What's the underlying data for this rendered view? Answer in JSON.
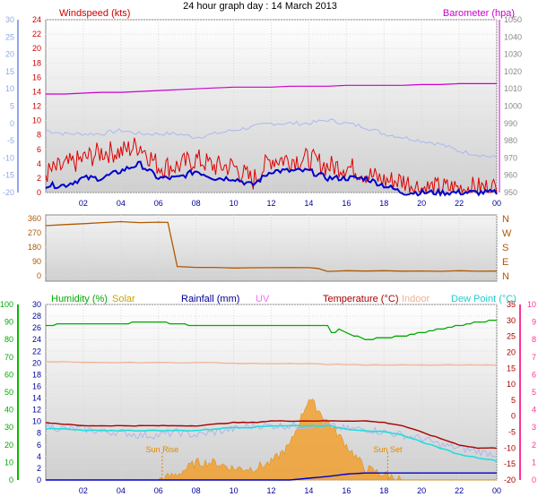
{
  "title": "24 hour graph day : 14 March 2013",
  "colors": {
    "wind": "#dd0000",
    "gust_avg": "#0000cc",
    "baro": "#cc00cc",
    "temp_axis": "#8fa8e8",
    "wind_dir": "#b05800",
    "humidity": "#00aa00",
    "solar": "#f0a030",
    "rain": "#0000cc",
    "uv": "#ff66ff",
    "temperature": "#aa0000",
    "indoor": "#f0b090",
    "dewpoint": "#22dddd",
    "hum_axis": "#00bb00",
    "uv_axis": "#ff3399"
  },
  "panels": {
    "wind": {
      "label_left": "Windspeed (kts)",
      "label_right": "Barometer (hpa)",
      "left_temp_ticks": [
        "30",
        "25",
        "20",
        "15",
        "10",
        "5",
        "0",
        "-5",
        "-10",
        "-15",
        "-20"
      ],
      "left_wind_ticks": [
        "24",
        "22",
        "20",
        "18",
        "16",
        "14",
        "12",
        "10",
        "8",
        "6",
        "4",
        "2",
        "0"
      ],
      "right_baro_ticks": [
        "1050",
        "1040",
        "1030",
        "1020",
        "1010",
        "1000",
        "990",
        "980",
        "970",
        "960",
        "950"
      ]
    },
    "direction": {
      "left_ticks": [
        "360",
        "270",
        "180",
        "90",
        "0"
      ],
      "right_ticks": [
        "N",
        "W",
        "S",
        "E",
        "N"
      ]
    },
    "multi": {
      "labels": {
        "humidity": "Humidity  (%)",
        "solar": "Solar",
        "rainfall": "Rainfall (mm)",
        "uv": "UV",
        "temperature": "Temperature (°C)",
        "indoor": "Indoor",
        "dewpoint": "Dew Point (°C)"
      },
      "left_hum_ticks": [
        "100",
        "90",
        "80",
        "70",
        "60",
        "50",
        "40",
        "30",
        "20",
        "10",
        "0"
      ],
      "left_rain_ticks": [
        "30",
        "28",
        "26",
        "24",
        "22",
        "20",
        "18",
        "16",
        "14",
        "12",
        "10",
        "8",
        "6",
        "4",
        "2",
        "0"
      ],
      "right_temp_ticks": [
        "35",
        "30",
        "25",
        "20",
        "15",
        "10",
        "5",
        "0",
        "-5",
        "-10",
        "-15",
        "-20"
      ],
      "right_uv_ticks": [
        "10",
        "9",
        "8",
        "7",
        "6",
        "5",
        "4",
        "3",
        "2",
        "1",
        "0"
      ],
      "sunrise": "Sun Rise",
      "sunset": "Sun Set"
    }
  },
  "x_ticks": [
    "02",
    "04",
    "06",
    "08",
    "10",
    "12",
    "14",
    "16",
    "18",
    "20",
    "22",
    "00"
  ],
  "chart_data": [
    {
      "type": "line",
      "title": "24 hour graph day : 14 March 2013",
      "xlabel": "",
      "ylabel": "Windspeed (kts)",
      "x": [
        "00",
        "01",
        "02",
        "03",
        "04",
        "05",
        "06",
        "07",
        "08",
        "09",
        "10",
        "11",
        "12",
        "13",
        "14",
        "15",
        "16",
        "17",
        "18",
        "19",
        "20",
        "21",
        "22",
        "23",
        "24"
      ],
      "ylim": [
        0,
        24
      ],
      "y2lim": [
        950,
        1050
      ],
      "series": [
        {
          "name": "Windspeed",
          "axis": "wind",
          "values": [
            2,
            3,
            4,
            5,
            5,
            6,
            3,
            3,
            4,
            3,
            3,
            1,
            4,
            4,
            4,
            3,
            3,
            2,
            1,
            1,
            0,
            0,
            0,
            0,
            0
          ]
        },
        {
          "axis": "wind",
          "values": [
            1,
            1,
            2,
            2,
            3,
            4,
            2,
            2,
            3,
            2,
            2,
            1,
            3,
            3,
            3,
            2,
            2,
            2,
            1,
            0,
            0,
            0,
            0,
            0,
            0
          ]
        },
        {
          "name": "Barometer",
          "axis": "baro",
          "values": [
            1007,
            1007,
            1007.5,
            1008,
            1008,
            1008.5,
            1009,
            1009.5,
            1010,
            1010.5,
            1011,
            1011,
            1011,
            1011.5,
            1011.5,
            1011.5,
            1012,
            1012,
            1012,
            1012,
            1012.5,
            1012.5,
            1013,
            1013,
            1013
          ]
        },
        {
          "axis": "temp",
          "values": [
            -2,
            -3,
            -3,
            -3,
            -2,
            -3,
            -3,
            -3,
            -4,
            -3,
            -2,
            -1,
            0,
            0,
            0,
            1,
            0,
            -1,
            -3,
            -4,
            -5,
            -6,
            -8,
            -9,
            -10
          ]
        }
      ]
    },
    {
      "type": "line",
      "xlabel": "",
      "ylabel": "",
      "x": [
        "00",
        "01",
        "02",
        "03",
        "04",
        "05",
        "06",
        "06.5",
        "07",
        "08",
        "09",
        "10",
        "11",
        "12",
        "13",
        "14",
        "14.5",
        "15",
        "16",
        "17",
        "18",
        "19",
        "20",
        "21",
        "22",
        "23",
        "24"
      ],
      "ylim": [
        0,
        360
      ],
      "series": [
        {
          "axis": "dir",
          "values": [
            315,
            320,
            330,
            335,
            340,
            335,
            335,
            335,
            60,
            55,
            55,
            50,
            50,
            50,
            50,
            50,
            45,
            30,
            30,
            30,
            30,
            30,
            30,
            30,
            30,
            30,
            30
          ]
        }
      ]
    },
    {
      "type": "line",
      "xlabel": "",
      "ylabel": "",
      "x": [
        "00",
        "01",
        "02",
        "03",
        "04",
        "05",
        "06",
        "07",
        "08",
        "09",
        "10",
        "11",
        "12",
        "13",
        "14",
        "15",
        "16",
        "17",
        "18",
        "19",
        "20",
        "21",
        "22",
        "23",
        "24"
      ],
      "ylim": [
        0,
        100
      ],
      "y2lim": [
        -20,
        35
      ],
      "series": [
        {
          "name": "Humidity",
          "axis": "hum",
          "values": [
            88,
            89,
            89,
            89,
            89,
            90,
            90,
            89,
            88,
            88,
            88,
            88,
            88,
            88,
            88,
            88,
            84,
            80,
            81,
            82,
            84,
            86,
            88,
            90,
            91
          ]
        },
        {
          "name": "Solar",
          "axis": "solar",
          "values": [
            0,
            0,
            0,
            0,
            0,
            0,
            0,
            1,
            3,
            3,
            2,
            2,
            3,
            6,
            14,
            10,
            6,
            2,
            1,
            0,
            0,
            0,
            0,
            0,
            0
          ]
        },
        {
          "name": "Rainfall",
          "axis": "rain",
          "values": [
            0,
            0,
            0,
            0,
            0,
            0,
            0,
            0,
            0,
            0,
            0,
            0,
            0,
            0,
            0.3,
            0.6,
            1,
            1.2,
            1.2,
            1.2,
            1.2,
            1.2,
            1.2,
            1.2,
            1.2
          ]
        },
        {
          "name": "Temperature",
          "axis": "temp",
          "values": [
            -2,
            -2.5,
            -3,
            -3,
            -3,
            -3,
            -3,
            -3,
            -3,
            -2.5,
            -2,
            -2,
            -1.5,
            -1.5,
            -1.5,
            -1.5,
            -1.5,
            -1.5,
            -2,
            -3,
            -5,
            -7,
            -9,
            -10,
            -10
          ]
        },
        {
          "name": "Indoor",
          "axis": "temp",
          "values": [
            17,
            17,
            16.8,
            16.8,
            16.8,
            16.8,
            16.8,
            16.8,
            16.8,
            16.8,
            16.5,
            16.5,
            16.5,
            16.5,
            16.5,
            16.2,
            16.2,
            16,
            16,
            16,
            16,
            16,
            16,
            16,
            16
          ]
        },
        {
          "name": "Dew Point",
          "axis": "temp",
          "values": [
            -4,
            -4,
            -4.5,
            -4.5,
            -4.5,
            -4.5,
            -4.5,
            -4.5,
            -4.5,
            -4,
            -3.5,
            -3.5,
            -3,
            -3,
            -3,
            -3,
            -4,
            -4.5,
            -5,
            -6,
            -8,
            -10,
            -12,
            -13,
            -14
          ]
        },
        {
          "axis": "temp",
          "values": [
            -3,
            -4,
            -4,
            -5,
            -5,
            -6,
            -6,
            -5,
            -6,
            -5,
            -4,
            -3,
            -3,
            -3,
            -3,
            -3,
            -4,
            -4,
            -5,
            -6,
            -7,
            -9,
            -10,
            -11,
            -12
          ]
        }
      ]
    }
  ]
}
